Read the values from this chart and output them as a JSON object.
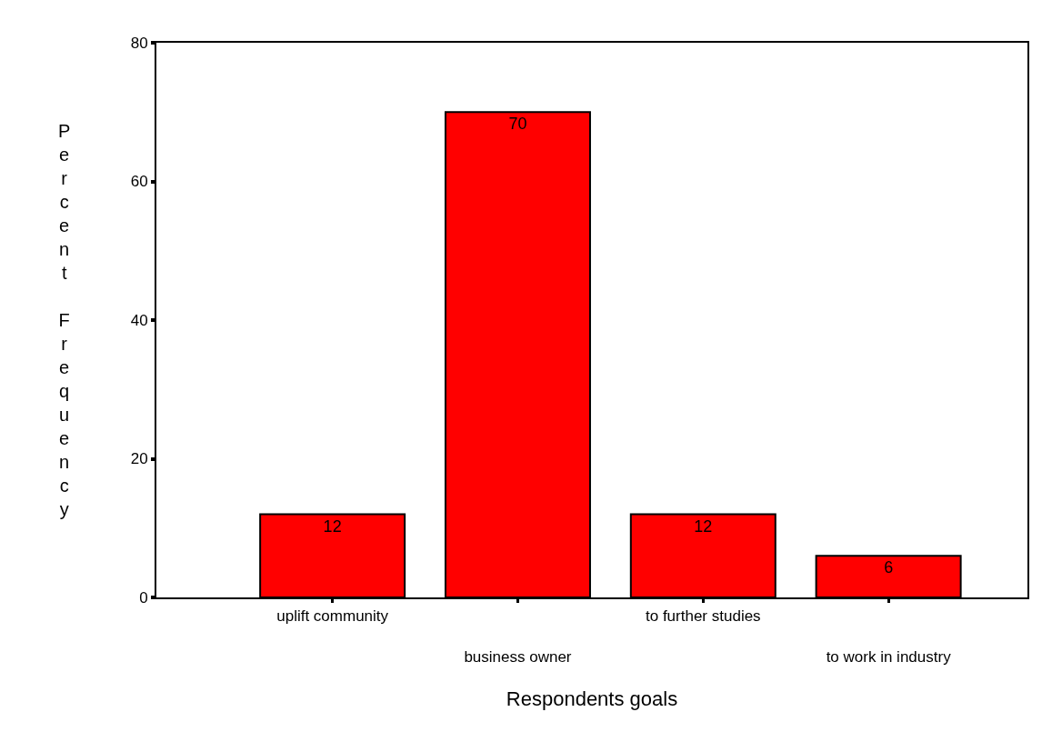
{
  "chart_data": {
    "type": "bar",
    "xlabel": "Respondents goals",
    "ylabel": "Percent Frequency",
    "categories": [
      "uplift community",
      "business owner",
      "to further studies",
      "to work in industry"
    ],
    "values": [
      12,
      70,
      12,
      6
    ],
    "color": "#ff0000",
    "data_labels": true,
    "ylim": [
      0,
      80
    ],
    "yticks": [
      0,
      20,
      40,
      60,
      80
    ]
  }
}
